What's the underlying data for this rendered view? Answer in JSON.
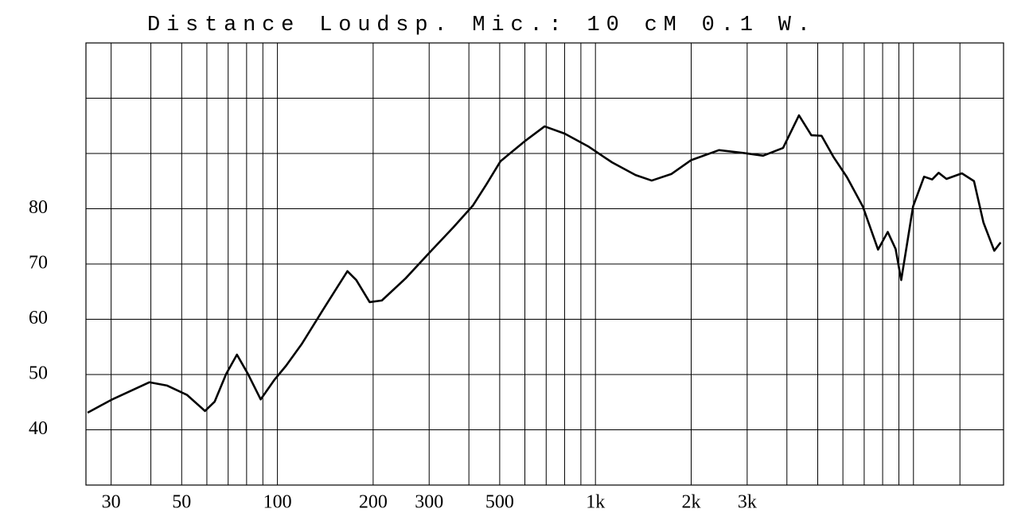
{
  "chart_data": {
    "type": "line",
    "title": "Distance Loudsp. Mic.: 10 cM 0.1 W.",
    "log_x": true,
    "color": "#000000",
    "grid": true,
    "xlim": [
      25,
      19200
    ],
    "ylim": [
      30,
      110
    ],
    "xticks": [
      30,
      50,
      100,
      200,
      300,
      500,
      {
        "value": 1000,
        "label": "1k"
      },
      {
        "value": 2000,
        "label": "2k"
      },
      {
        "value": 3000,
        "label": "3k"
      }
    ],
    "xgrid": [
      30,
      40,
      50,
      60,
      70,
      80,
      90,
      100,
      200,
      300,
      400,
      500,
      600,
      700,
      800,
      900,
      1000,
      2000,
      3000,
      4000,
      5000,
      6000,
      7000,
      8000,
      9000,
      10000,
      14000
    ],
    "yticks": [
      40,
      50,
      60,
      70,
      80
    ],
    "ygrid": [
      30,
      40,
      50,
      60,
      70,
      80,
      90,
      100,
      110
    ],
    "x": [
      25.3,
      30,
      39.6,
      45,
      52,
      59.2,
      63.5,
      69,
      74.6,
      80.8,
      88.6,
      97.7,
      106.5,
      119.5,
      138,
      155,
      166,
      177,
      195,
      213,
      253,
      300,
      357,
      412,
      454,
      503,
      599,
      692,
      800,
      948,
      1127,
      1337,
      1503,
      1735,
      2000,
      2445,
      2913,
      3367,
      3890,
      4365,
      4775,
      5140,
      5600,
      6180,
      6930,
      7740,
      8300,
      8790,
      9150,
      9520,
      9970,
      10800,
      11450,
      12000,
      12700,
      14200,
      15500,
      16600,
      17950,
      18800
    ],
    "values": [
      43.1,
      45.4,
      48.6,
      48.0,
      46.3,
      43.4,
      45.1,
      50.1,
      53.6,
      50.1,
      45.5,
      49.0,
      51.6,
      55.6,
      61.4,
      66.0,
      68.7,
      67.1,
      63.1,
      63.4,
      67.4,
      72.0,
      76.6,
      80.6,
      84.4,
      88.6,
      92.2,
      94.9,
      93.6,
      91.3,
      88.4,
      86.1,
      85.1,
      86.3,
      88.8,
      90.6,
      90.1,
      89.6,
      91.0,
      96.9,
      93.3,
      93.2,
      89.4,
      85.7,
      80.4,
      72.6,
      75.8,
      72.7,
      67.1,
      73.2,
      80.4,
      85.8,
      85.3,
      86.5,
      85.4,
      86.4,
      85.0,
      77.5,
      72.4,
      73.9
    ]
  }
}
